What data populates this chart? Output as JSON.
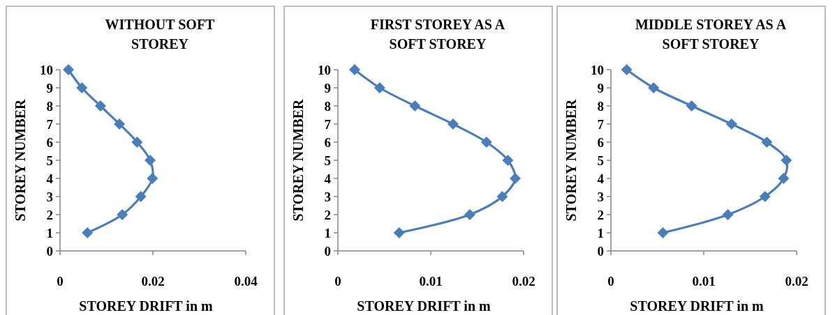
{
  "chart_data": [
    {
      "type": "line",
      "title": "WITHOUT SOFT STOREY",
      "xlabel": "STOREY DRIFT in m",
      "ylabel": "STOREY NUMBER",
      "xlim": [
        0,
        0.04
      ],
      "xticks": [
        0,
        0.02,
        0.04
      ],
      "ylim": [
        0,
        10
      ],
      "yticks": [
        0,
        1,
        2,
        3,
        4,
        5,
        6,
        7,
        8,
        9,
        10
      ],
      "marker": "diamond",
      "series": [
        {
          "color": "#4a7ebb",
          "x": [
            0.0059,
            0.0134,
            0.0174,
            0.0199,
            0.0194,
            0.0166,
            0.0128,
            0.0087,
            0.0047,
            0.0018
          ],
          "values": [
            1,
            2,
            3,
            4,
            5,
            6,
            7,
            8,
            9,
            10
          ]
        }
      ]
    },
    {
      "type": "line",
      "title": "FIRST STOREY AS A SOFT STOREY",
      "xlabel": "STOREY DRIFT in m",
      "ylabel": "STOREY NUMBER",
      "xlim": [
        0,
        0.02
      ],
      "xticks": [
        0,
        0.01,
        0.02
      ],
      "ylim": [
        0,
        10
      ],
      "yticks": [
        0,
        1,
        2,
        3,
        4,
        5,
        6,
        7,
        8,
        9,
        10
      ],
      "marker": "diamond",
      "series": [
        {
          "color": "#4a7ebb",
          "x": [
            0.0066,
            0.0142,
            0.0177,
            0.0191,
            0.0183,
            0.016,
            0.0124,
            0.0083,
            0.0045,
            0.0018
          ],
          "values": [
            1,
            2,
            3,
            4,
            5,
            6,
            7,
            8,
            9,
            10
          ]
        }
      ]
    },
    {
      "type": "line",
      "title": "MIDDLE STOREY AS A SOFT STOREY",
      "xlabel": "STOREY DRIFT in m",
      "ylabel": "STOREY NUMBER",
      "xlim": [
        0,
        0.02
      ],
      "xticks": [
        0,
        0.01,
        0.02
      ],
      "ylim": [
        0,
        10
      ],
      "yticks": [
        0,
        1,
        2,
        3,
        4,
        5,
        6,
        7,
        8,
        9,
        10
      ],
      "marker": "diamond",
      "series": [
        {
          "color": "#4a7ebb",
          "x": [
            0.0056,
            0.0126,
            0.0166,
            0.0186,
            0.0189,
            0.0168,
            0.013,
            0.0087,
            0.0046,
            0.0017
          ],
          "values": [
            1,
            2,
            3,
            4,
            5,
            6,
            7,
            8,
            9,
            10
          ]
        }
      ]
    }
  ]
}
